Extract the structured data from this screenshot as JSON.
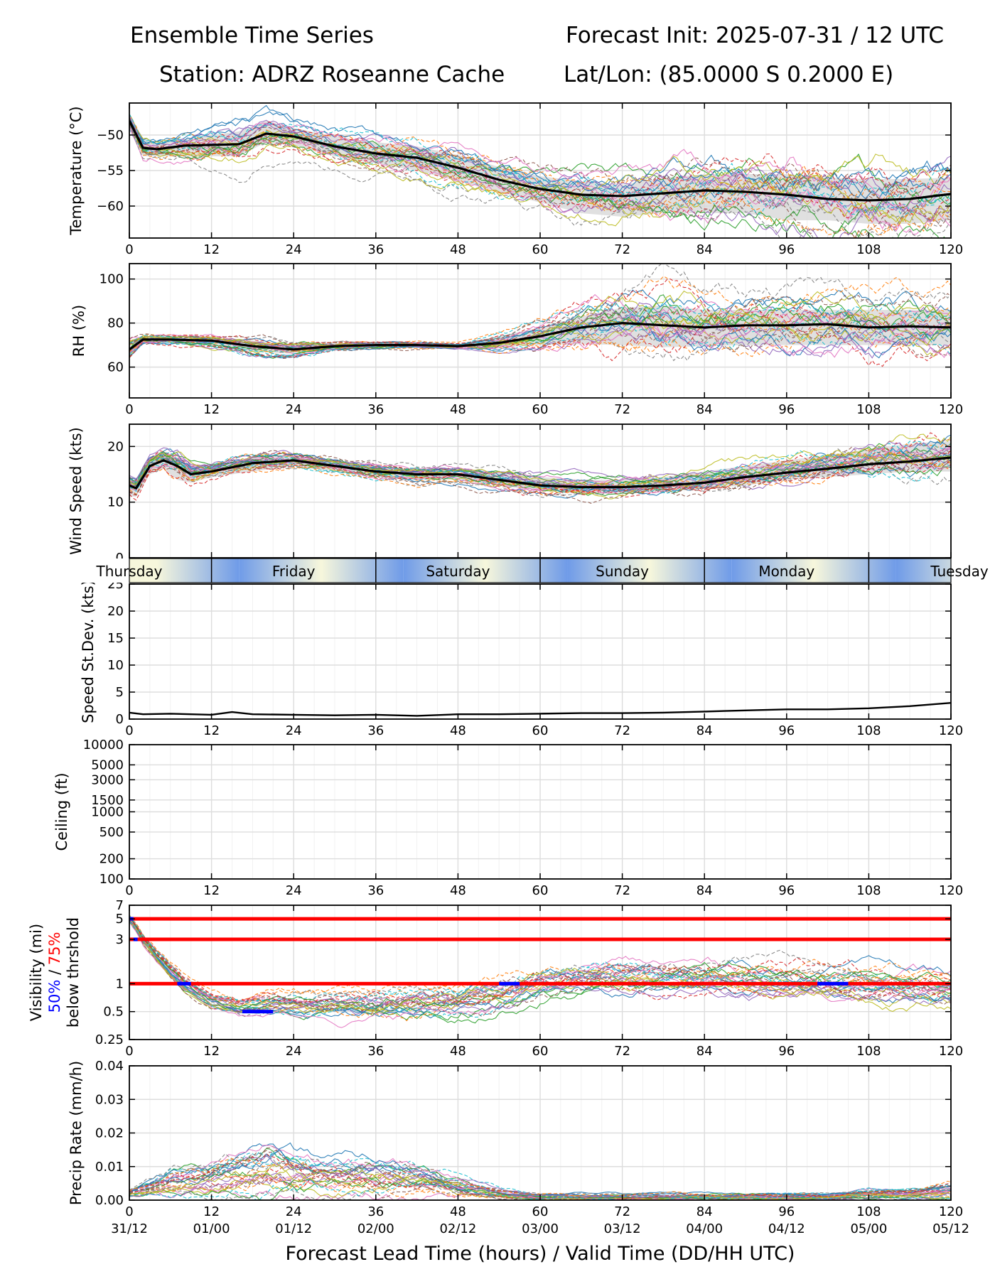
{
  "header": {
    "title_left": "Ensemble Time Series",
    "title_right": "Forecast Init: 2025-07-31 / 12 UTC",
    "station": "Station: ADRZ Roseanne Cache",
    "latlon": "Lat/Lon: (85.0000 S 0.2000 E)"
  },
  "colors": {
    "ensemble_palette": [
      "#1f77b4",
      "#ff7f0e",
      "#2ca02c",
      "#d62728",
      "#9467bd",
      "#8c564b",
      "#e377c2",
      "#7f7f7f",
      "#bcbd22",
      "#17becf"
    ],
    "mean_line": "#000000",
    "spread_band": "#d8d8d8",
    "threshold_line": "#ff0000",
    "prob50_marker": "#0000ff",
    "day_band_light": "#f7f7dc",
    "day_band_dark": "#6f9be8"
  },
  "x_axis": {
    "ticks": [
      "0",
      "12",
      "24",
      "36",
      "48",
      "60",
      "72",
      "84",
      "96",
      "108",
      "120"
    ],
    "valid_times": [
      "31/12",
      "01/00",
      "01/12",
      "02/00",
      "02/12",
      "03/00",
      "03/12",
      "04/00",
      "04/12",
      "05/00",
      "05/12"
    ],
    "label": "Forecast Lead Time (hours) / Valid Time (DD/HH UTC)",
    "range": [
      0,
      120
    ]
  },
  "day_band": {
    "days": [
      "Thursday",
      "Friday",
      "Saturday",
      "Sunday",
      "Monday",
      "Tuesday"
    ]
  },
  "chart_data": [
    {
      "type": "line",
      "ylabel": "Temperature (°C)",
      "ylim": [
        -64.5,
        -45.5
      ],
      "yticks": [
        -60,
        -55,
        -50
      ],
      "ytick_labels": [
        "−60",
        "−55",
        "−50"
      ],
      "grid": true,
      "x": [
        0,
        2,
        4,
        8,
        12,
        16,
        20,
        24,
        30,
        36,
        42,
        48,
        54,
        60,
        66,
        72,
        78,
        84,
        90,
        96,
        102,
        108,
        114,
        120
      ],
      "series": [
        {
          "values": [
            -48,
            -51.8,
            -52,
            -51.5,
            -51.4,
            -51.3,
            -49.8,
            -50.2,
            -51.6,
            -52.6,
            -53.2,
            -54.6,
            -56.3,
            -57.6,
            -58.4,
            -58.6,
            -58.2,
            -57.8,
            -58.0,
            -58.4,
            -59.0,
            -59.2,
            -59.0,
            -58.3
          ]
        }
      ],
      "band": {
        "lower": [
          -49,
          -53,
          -53,
          -53,
          -53,
          -53,
          -51,
          -51.5,
          -53,
          -54,
          -55,
          -56.5,
          -58,
          -59.5,
          -61,
          -61.5,
          -61,
          -61,
          -61,
          -62,
          -62,
          -62.5,
          -62.5,
          -62
        ],
        "upper": [
          -47,
          -50.5,
          -51,
          -50.5,
          -50,
          -49.5,
          -48,
          -49,
          -50.2,
          -51,
          -51.6,
          -52.8,
          -54.5,
          -55.8,
          -56.5,
          -57,
          -56,
          -55.5,
          -55.5,
          -55.5,
          -56,
          -56.2,
          -56.2,
          -56
        ]
      }
    },
    {
      "type": "line",
      "ylabel": "RH (%)",
      "ylim": [
        46,
        107
      ],
      "yticks": [
        60,
        80,
        100
      ],
      "ytick_labels": [
        "60",
        "80",
        "100"
      ],
      "grid": true,
      "x": [
        0,
        2,
        6,
        12,
        18,
        24,
        30,
        36,
        42,
        48,
        54,
        60,
        66,
        72,
        78,
        84,
        90,
        96,
        102,
        108,
        114,
        120
      ],
      "series": [
        {
          "values": [
            68,
            72.5,
            72.5,
            72,
            69.5,
            68,
            69.5,
            70,
            70,
            69.5,
            71,
            74,
            78,
            80,
            79,
            78,
            79,
            79,
            79.5,
            78,
            78.5,
            78
          ]
        }
      ],
      "band": {
        "lower": [
          64,
          70.5,
          71,
          70,
          67,
          66,
          68,
          69,
          69,
          69,
          69,
          70,
          70.5,
          70,
          69,
          69.5,
          70,
          70,
          70,
          70,
          70,
          70
        ],
        "upper": [
          72,
          74,
          74,
          74,
          72,
          70.5,
          71,
          71,
          71,
          70.5,
          74,
          78,
          83,
          87,
          88,
          86,
          86,
          86,
          86,
          86,
          86,
          86
        ]
      }
    },
    {
      "type": "line",
      "ylabel": "Wind Speed (kts)",
      "ylim": [
        0,
        24
      ],
      "yticks": [
        0,
        10,
        20
      ],
      "ytick_labels": [
        "0",
        "10",
        "20"
      ],
      "grid": true,
      "x": [
        0,
        1,
        3,
        5,
        7,
        9,
        12,
        18,
        24,
        30,
        36,
        42,
        48,
        54,
        60,
        66,
        72,
        78,
        84,
        90,
        96,
        102,
        108,
        114,
        120
      ],
      "series": [
        {
          "values": [
            13,
            12.5,
            16.5,
            17.5,
            16.5,
            15,
            15.5,
            17,
            17.5,
            16.5,
            15.5,
            15,
            15,
            14,
            13,
            12.7,
            12.7,
            13,
            13.5,
            14.5,
            15.3,
            16,
            16.8,
            17.3,
            18
          ]
        }
      ],
      "band": {
        "lower": [
          11,
          11,
          15,
          16,
          14,
          13.5,
          14.5,
          15.5,
          16.5,
          15.5,
          14.5,
          14,
          14,
          13,
          12,
          11.5,
          11.5,
          12,
          12.5,
          13,
          14,
          14.5,
          15,
          15.5,
          15.5
        ],
        "upper": [
          14,
          14,
          18,
          19,
          18,
          16.5,
          16.5,
          18,
          18.5,
          17.5,
          16.5,
          16,
          16,
          15.5,
          14.5,
          14,
          14,
          14.5,
          15.5,
          16.5,
          17.5,
          18.5,
          19.5,
          20.5,
          21
        ]
      }
    },
    {
      "type": "line",
      "ylabel": "Speed St.Dev. (kts)",
      "ylim": [
        0,
        25
      ],
      "yticks": [
        0,
        5,
        10,
        15,
        20,
        25
      ],
      "ytick_labels": [
        "0",
        "5",
        "10",
        "15",
        "20",
        "25"
      ],
      "grid": true,
      "x": [
        0,
        2,
        6,
        12,
        15,
        18,
        24,
        30,
        36,
        42,
        48,
        54,
        60,
        66,
        72,
        78,
        84,
        90,
        96,
        102,
        108,
        114,
        120
      ],
      "series": [
        {
          "values": [
            1.2,
            0.9,
            1.0,
            0.8,
            1.3,
            0.9,
            0.8,
            0.7,
            0.8,
            0.6,
            0.9,
            0.9,
            1.0,
            1.1,
            1.1,
            1.2,
            1.4,
            1.6,
            1.8,
            1.8,
            2.0,
            2.4,
            3.0
          ]
        }
      ]
    },
    {
      "type": "line",
      "ylabel": "Ceiling (ft)",
      "yscale": "log",
      "ylim": [
        100,
        10000
      ],
      "yticks": [
        100,
        200,
        500,
        1000,
        1500,
        3000,
        5000,
        10000
      ],
      "ytick_labels": [
        "100",
        "200",
        "500",
        "1000",
        "1500",
        "3000",
        "5000",
        "10000"
      ],
      "grid": true,
      "series": []
    },
    {
      "type": "line",
      "ylabel": "Visibility (mi)",
      "ylabel_prob": [
        "50%",
        "/",
        "75%"
      ],
      "ylabel_below": "below thrshold",
      "yscale": "log",
      "ylim": [
        0.25,
        7
      ],
      "yticks": [
        0.25,
        0.5,
        1,
        3,
        5,
        7
      ],
      "ytick_labels": [
        "0.25",
        "0.5",
        "1",
        "3",
        "5",
        "7"
      ],
      "grid": true,
      "thresholds": [
        1,
        3,
        5
      ],
      "x": [
        0,
        2,
        4,
        6,
        8,
        10,
        12,
        16,
        20,
        24,
        30,
        36,
        42,
        48,
        54,
        60,
        66,
        72,
        78,
        84,
        90,
        96,
        102,
        108,
        114,
        120
      ],
      "series": [
        {
          "values": [
            5,
            3,
            2,
            1.4,
            1,
            0.8,
            0.65,
            0.55,
            0.6,
            0.6,
            0.6,
            0.6,
            0.65,
            0.65,
            0.8,
            1.05,
            1.2,
            1.3,
            1.25,
            1.25,
            1.2,
            1.15,
            1.1,
            1.0,
            0.95,
            0.9
          ]
        }
      ],
      "prob50_segments": [
        [
          0,
          0.6,
          5
        ],
        [
          0.6,
          1.2,
          3
        ],
        [
          7,
          9,
          1
        ],
        [
          16.5,
          21,
          0.5
        ],
        [
          54,
          57,
          1
        ],
        [
          100.5,
          105,
          1
        ]
      ]
    },
    {
      "type": "line",
      "ylabel": "Precip Rate (mm/h)",
      "ylim": [
        0,
        0.04
      ],
      "yticks": [
        0,
        0.01,
        0.02,
        0.03,
        0.04
      ],
      "ytick_labels": [
        "0.00",
        "0.01",
        "0.02",
        "0.03",
        "0.04"
      ],
      "grid": true,
      "x": [
        0,
        6,
        12,
        18,
        21,
        24,
        30,
        36,
        42,
        48,
        54,
        60,
        66,
        72,
        78,
        84,
        90,
        96,
        102,
        108,
        114,
        120
      ],
      "series": [
        {
          "values": [
            0.002,
            0.005,
            0.006,
            0.008,
            0.009,
            0.008,
            0.007,
            0.007,
            0.006,
            0.004,
            0.002,
            0.001,
            0.001,
            0.001,
            0.001,
            0.001,
            0.001,
            0.001,
            0.001,
            0.002,
            0.002,
            0.003
          ]
        }
      ]
    }
  ]
}
